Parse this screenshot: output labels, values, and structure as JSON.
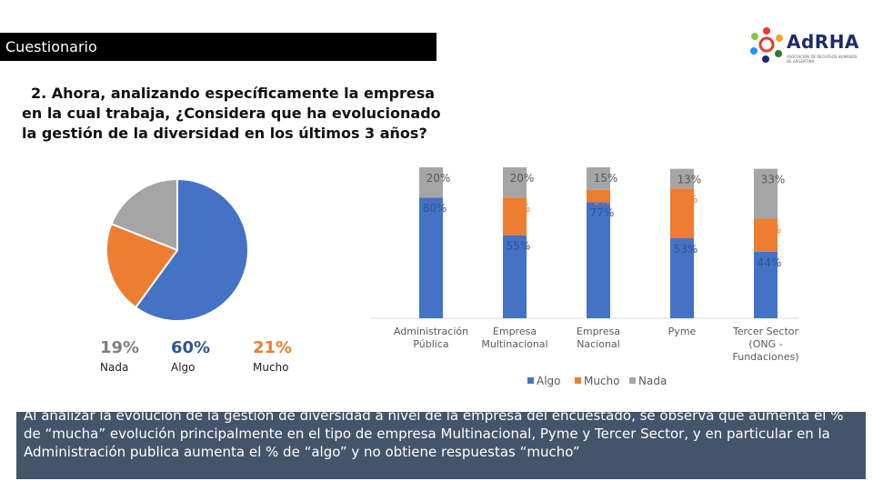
{
  "header": {
    "title": "Cuestionario"
  },
  "logo": {
    "name": "AdRHA",
    "subtitle": "ASOCIACIÓN DE RECURSOS HUMANOS DE ARGENTINA"
  },
  "question": "2. Ahora, analizando específicamente la empresa en la cual trabaja, ¿Considera que ha evolucionado la gestión de la diversidad en los últimos 3 años?",
  "pie": {
    "slices": [
      {
        "label": "Nada",
        "pct_text": "19%",
        "value": 19,
        "color": "#a5a5a5"
      },
      {
        "label": "Algo",
        "pct_text": "60%",
        "value": 60,
        "color": "#4472c4"
      },
      {
        "label": "Mucho",
        "pct_text": "21%",
        "value": 21,
        "color": "#ed7d31"
      }
    ]
  },
  "chart_data": {
    "type": "bar",
    "stacked": true,
    "categories": [
      "Administración Pública",
      "Empresa Multinacional",
      "Empresa Nacional",
      "Pyme",
      "Tercer Sector (ONG - Fundaciones)"
    ],
    "series": [
      {
        "name": "Algo",
        "color": "#4472c4",
        "values": [
          80,
          55,
          77,
          53,
          44
        ]
      },
      {
        "name": "Mucho",
        "color": "#ed7d31",
        "values": [
          0,
          25,
          8,
          33,
          22
        ]
      },
      {
        "name": "Nada",
        "color": "#a5a5a5",
        "values": [
          20,
          20,
          15,
          13,
          33
        ]
      }
    ],
    "ylim": [
      0,
      100
    ],
    "legend": [
      "Algo",
      "Mucho",
      "Nada"
    ],
    "legend_position": "bottom"
  },
  "footer": {
    "text": "Al analizar la evolución de la gestión de diversidad a nivel de la empresa del encuestado, se observa que aumenta el % de “mucha” evolución principalmente en el tipo de empresa Multinacional, Pyme y Tercer Sector, y en particular en la Administración publica aumenta el % de “algo” y no obtiene respuestas “mucho”"
  }
}
